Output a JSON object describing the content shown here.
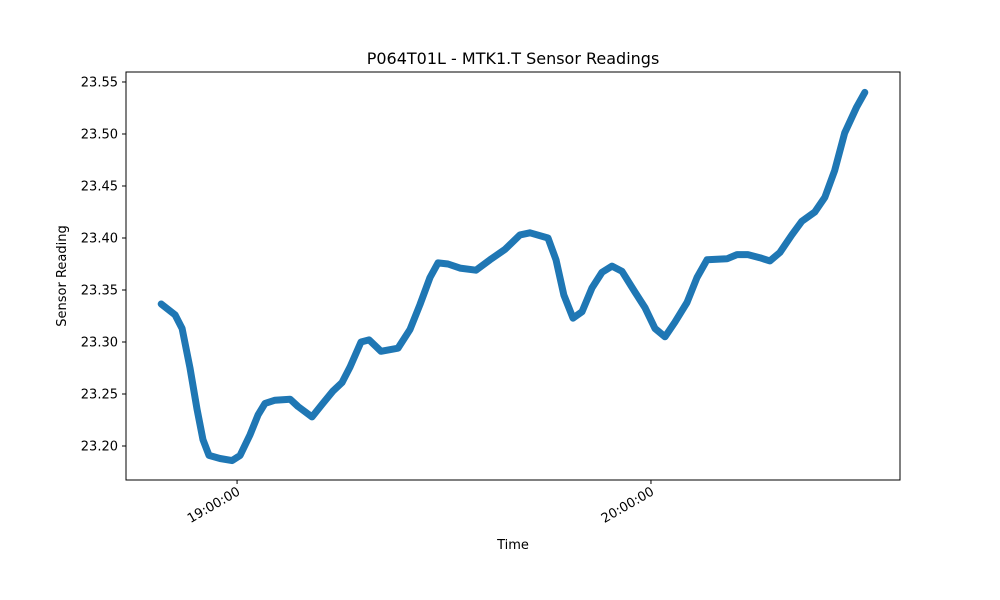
{
  "chart_data": {
    "type": "line",
    "title": "P064T01L - MTK1.T Sensor Readings",
    "x_label": "Time",
    "y_label": "Sensor Reading",
    "color": "#1f77b4",
    "x": [
      "18:49:00",
      "18:51:01",
      "18:52:02",
      "18:53:11",
      "18:54:12",
      "18:55:04",
      "18:55:56",
      "18:57:32",
      "18:59:17",
      "19:00:26",
      "19:01:53",
      "19:03:03",
      "19:04:03",
      "19:05:30",
      "19:07:41",
      "19:08:50",
      "19:10:52",
      "19:12:19",
      "19:13:55",
      "19:15:13",
      "19:16:23",
      "19:17:58",
      "19:19:08",
      "19:20:52",
      "19:23:20",
      "19:25:04",
      "19:26:31",
      "19:27:58",
      "19:29:08",
      "19:30:35",
      "19:32:19",
      "19:34:38",
      "19:36:40",
      "19:38:50",
      "19:41:01",
      "19:42:28",
      "19:45:04",
      "19:46:14",
      "19:47:23",
      "19:48:42",
      "19:50:00",
      "19:51:27",
      "19:52:54",
      "19:54:21",
      "19:55:48",
      "19:57:41",
      "19:59:08",
      "20:00:35",
      "20:02:02",
      "20:03:28",
      "20:05:13",
      "20:06:40",
      "20:08:07",
      "20:11:01",
      "20:12:28",
      "20:14:03",
      "20:15:47",
      "20:17:14",
      "20:18:41",
      "20:20:25",
      "20:21:52",
      "20:23:45",
      "20:25:12",
      "20:26:38",
      "20:28:05",
      "20:29:49",
      "20:31:00"
    ],
    "values": [
      23.3365,
      23.326,
      23.313,
      23.275,
      23.235,
      23.206,
      23.191,
      23.188,
      23.186,
      23.191,
      23.211,
      23.23,
      23.241,
      23.244,
      23.245,
      23.238,
      23.228,
      23.24,
      23.253,
      23.261,
      23.276,
      23.3,
      23.302,
      23.291,
      23.294,
      23.312,
      23.336,
      23.362,
      23.376,
      23.375,
      23.371,
      23.369,
      23.379,
      23.389,
      23.403,
      23.405,
      23.4,
      23.379,
      23.345,
      23.323,
      23.329,
      23.352,
      23.367,
      23.373,
      23.368,
      23.348,
      23.333,
      23.313,
      23.305,
      23.319,
      23.338,
      23.362,
      23.379,
      23.38,
      23.384,
      23.384,
      23.381,
      23.378,
      23.386,
      23.403,
      23.416,
      23.425,
      23.439,
      23.465,
      23.501,
      23.526,
      23.54
    ],
    "xlim": [
      "18:43:54",
      "20:36:06"
    ],
    "xticks": [
      "19:00:00",
      "20:00:00"
    ],
    "ylim": [
      23.1673,
      23.5596
    ],
    "yticks": [
      {
        "value": 23.2,
        "label": "23.20"
      },
      {
        "value": 23.25,
        "label": "23.25"
      },
      {
        "value": 23.3,
        "label": "23.30"
      },
      {
        "value": 23.35,
        "label": "23.35"
      },
      {
        "value": 23.4,
        "label": "23.40"
      },
      {
        "value": 23.45,
        "label": "23.45"
      },
      {
        "value": 23.5,
        "label": "23.50"
      },
      {
        "value": 23.55,
        "label": "23.55"
      }
    ]
  }
}
